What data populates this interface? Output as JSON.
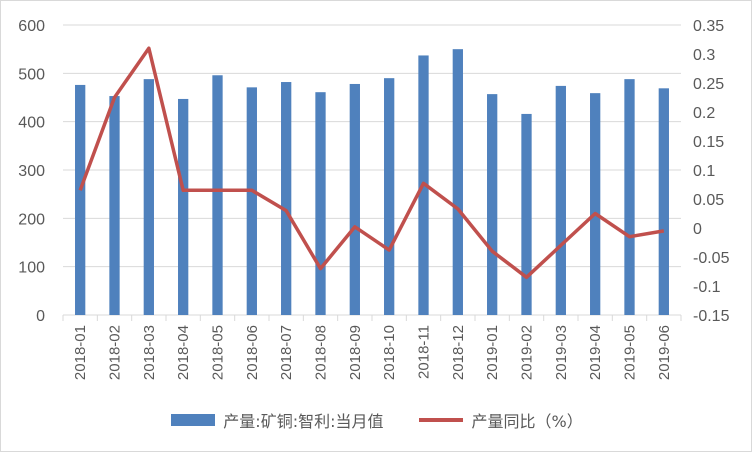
{
  "chart_data": {
    "type": "bar",
    "categories": [
      "2018-01",
      "2018-02",
      "2018-03",
      "2018-04",
      "2018-05",
      "2018-06",
      "2018-07",
      "2018-08",
      "2018-09",
      "2018-10",
      "2018-11",
      "2018-12",
      "2019-01",
      "2019-02",
      "2019-03",
      "2019-04",
      "2019-05",
      "2019-06"
    ],
    "series": [
      {
        "name": "产量:矿铜:智利:当月值",
        "type": "bar",
        "axis": "left",
        "color": "#4f81bd",
        "values": [
          476,
          453,
          488,
          447,
          496,
          471,
          482,
          461,
          478,
          490,
          537,
          550,
          457,
          416,
          474,
          459,
          488,
          469
        ]
      },
      {
        "name": "产量同比（%）",
        "type": "line",
        "axis": "right",
        "color": "#c0504d",
        "values": [
          0.065,
          0.225,
          0.31,
          0.065,
          0.065,
          0.065,
          0.03,
          -0.07,
          0.002,
          -0.038,
          0.077,
          0.033,
          -0.04,
          -0.085,
          -0.03,
          0.025,
          -0.015,
          -0.005
        ]
      }
    ],
    "y_left": {
      "min": 0,
      "max": 600,
      "ticks": [
        "0",
        "100",
        "200",
        "300",
        "400",
        "500",
        "600"
      ]
    },
    "y_right": {
      "min": -0.15,
      "max": 0.35,
      "ticks": [
        "-0.15",
        "-0.1",
        "-0.05",
        "0",
        "0.05",
        "0.1",
        "0.15",
        "0.2",
        "0.25",
        "0.3",
        "0.35"
      ]
    },
    "grid": true,
    "legend_position": "bottom"
  }
}
